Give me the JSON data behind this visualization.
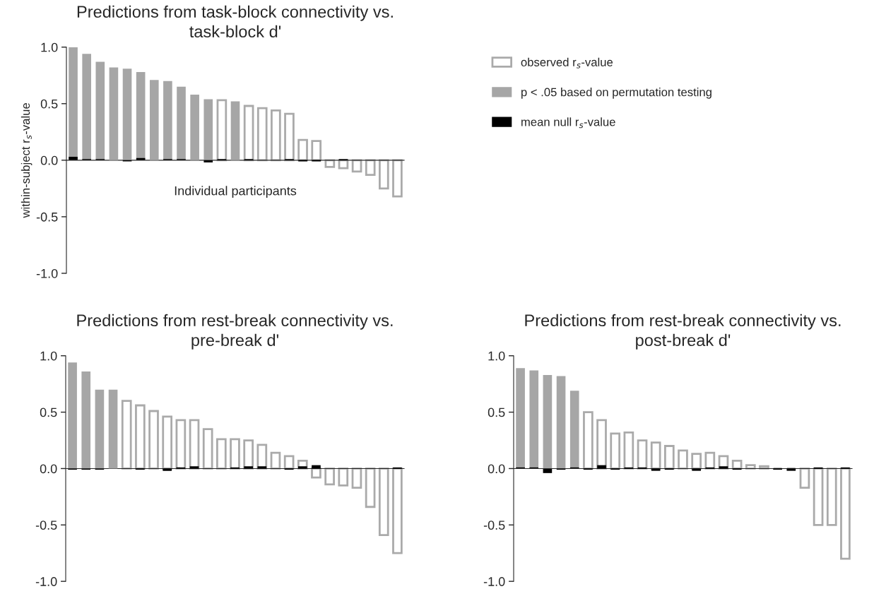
{
  "chart_data": [
    {
      "type": "bar",
      "title": "Predictions from task-block connectivity vs.\ntask-block d'",
      "ylabel": "within-subject r$_{s}$-value",
      "categories": [
        null,
        null,
        null,
        null,
        null,
        null,
        null,
        null,
        null,
        null,
        null,
        null,
        null,
        null,
        null,
        null,
        null,
        null,
        null,
        null,
        null,
        null,
        null,
        null,
        null
      ],
      "series": [
        {
          "name": "observed r$_{s}$-value",
          "color": "#aaaaaa",
          "values": [
            null,
            null,
            null,
            null,
            null,
            null,
            null,
            null,
            null,
            null,
            null,
            0.53,
            null,
            0.48,
            0.46,
            0.44,
            0.41,
            0.18,
            0.17,
            -0.06,
            -0.07,
            -0.1,
            -0.13,
            -0.25,
            -0.32
          ]
        },
        {
          "name": "p < .05 based on permutation testing",
          "color": "#a6a6a6",
          "values": [
            1.0,
            0.94,
            0.87,
            0.82,
            0.81,
            0.78,
            0.71,
            0.7,
            0.65,
            0.58,
            0.54,
            null,
            0.52,
            null,
            null,
            null,
            null,
            null,
            null,
            null,
            null,
            null,
            null,
            null,
            null
          ]
        },
        {
          "name": "mean null r$_{s}$-value",
          "color": "#000000",
          "values": [
            0.03,
            0.01,
            0.01,
            0,
            -0.01,
            0.02,
            0,
            0.01,
            0.01,
            0,
            -0.02,
            0.01,
            0,
            0.01,
            0,
            0,
            0.01,
            -0.01,
            -0.01,
            0,
            0.01,
            0,
            0,
            0,
            0
          ]
        }
      ],
      "ylim": [
        -1,
        1
      ],
      "yticks": [
        {
          "value": -1,
          "label": "-1.0"
        },
        {
          "value": -0.5,
          "label": "-0.5"
        },
        {
          "value": 0,
          "label": "0.0"
        },
        {
          "value": 0.5,
          "label": "0.5"
        },
        {
          "value": 1,
          "label": "1.0"
        }
      ],
      "tick_labels": "y",
      "legend": "right",
      "annotations": [
        "Individual participants"
      ]
    },
    {
      "type": "bar",
      "title": "Predictions from rest-break connectivity vs.\npre-break d'",
      "categories": [
        null,
        null,
        null,
        null,
        null,
        null,
        null,
        null,
        null,
        null,
        null,
        null,
        null,
        null,
        null,
        null,
        null,
        null,
        null,
        null,
        null,
        null,
        null,
        null,
        null
      ],
      "series": [
        {
          "color": "#aaaaaa",
          "values": [
            null,
            null,
            null,
            null,
            0.6,
            0.56,
            0.51,
            0.46,
            0.43,
            0.43,
            0.35,
            0.26,
            0.26,
            0.25,
            0.21,
            0.14,
            0.11,
            0.07,
            -0.08,
            -0.14,
            -0.15,
            -0.17,
            -0.34,
            -0.59,
            -0.75
          ]
        },
        {
          "color": "#a6a6a6",
          "values": [
            0.94,
            0.86,
            0.7,
            0.7,
            null,
            null,
            null,
            null,
            null,
            null,
            null,
            null,
            null,
            null,
            null,
            null,
            null,
            null,
            null,
            null,
            null,
            null,
            null,
            null,
            null
          ]
        },
        {
          "color": "#000000",
          "values": [
            -0.01,
            -0.01,
            -0.01,
            0,
            0,
            -0.01,
            0,
            -0.02,
            0.01,
            0.02,
            0,
            0,
            0.01,
            0.02,
            0.02,
            0,
            -0.01,
            0.02,
            0.03,
            0,
            0,
            0,
            0,
            0,
            0.01
          ]
        }
      ],
      "ylim": [
        -1,
        1
      ],
      "yticks": [
        {
          "value": -1,
          "label": "-1.0"
        },
        {
          "value": -0.5,
          "label": "-0.5"
        },
        {
          "value": 0,
          "label": "0.0"
        },
        {
          "value": 0.5,
          "label": "0.5"
        },
        {
          "value": 1,
          "label": "1.0"
        }
      ],
      "tick_labels": "y"
    },
    {
      "type": "bar",
      "title": "Predictions from rest-break connectivity vs.\npost-break d'",
      "categories": [
        null,
        null,
        null,
        null,
        null,
        null,
        null,
        null,
        null,
        null,
        null,
        null,
        null,
        null,
        null,
        null,
        null,
        null,
        null,
        null,
        null,
        null,
        null,
        null,
        null
      ],
      "series": [
        {
          "color": "#aaaaaa",
          "values": [
            null,
            null,
            null,
            null,
            null,
            0.5,
            0.43,
            0.31,
            0.32,
            0.25,
            0.23,
            0.2,
            0.16,
            0.13,
            0.14,
            0.11,
            0.07,
            0.03,
            0.02,
            0,
            0,
            -0.17,
            -0.5,
            -0.5,
            -0.8
          ]
        },
        {
          "color": "#a6a6a6",
          "values": [
            0.89,
            0.87,
            0.83,
            0.82,
            0.69,
            null,
            null,
            null,
            null,
            null,
            null,
            null,
            null,
            null,
            null,
            null,
            null,
            null,
            null,
            null,
            null,
            null,
            null,
            null,
            null
          ]
        },
        {
          "color": "#000000",
          "values": [
            0.01,
            0.01,
            -0.04,
            -0.01,
            0.01,
            -0.01,
            0.03,
            -0.01,
            0.01,
            0.01,
            -0.02,
            -0.01,
            0,
            -0.02,
            0.01,
            0.02,
            -0.01,
            0,
            0,
            -0.01,
            -0.02,
            0,
            0.01,
            0,
            0.01
          ]
        }
      ],
      "ylim": [
        -1,
        1
      ],
      "yticks": [
        {
          "value": -1,
          "label": "-1.0"
        },
        {
          "value": -0.5,
          "label": "-0.5"
        },
        {
          "value": 0,
          "label": "0.0"
        },
        {
          "value": 0.5,
          "label": "0.5"
        },
        {
          "value": 1,
          "label": "1.0"
        }
      ],
      "tick_labels": "y"
    }
  ]
}
